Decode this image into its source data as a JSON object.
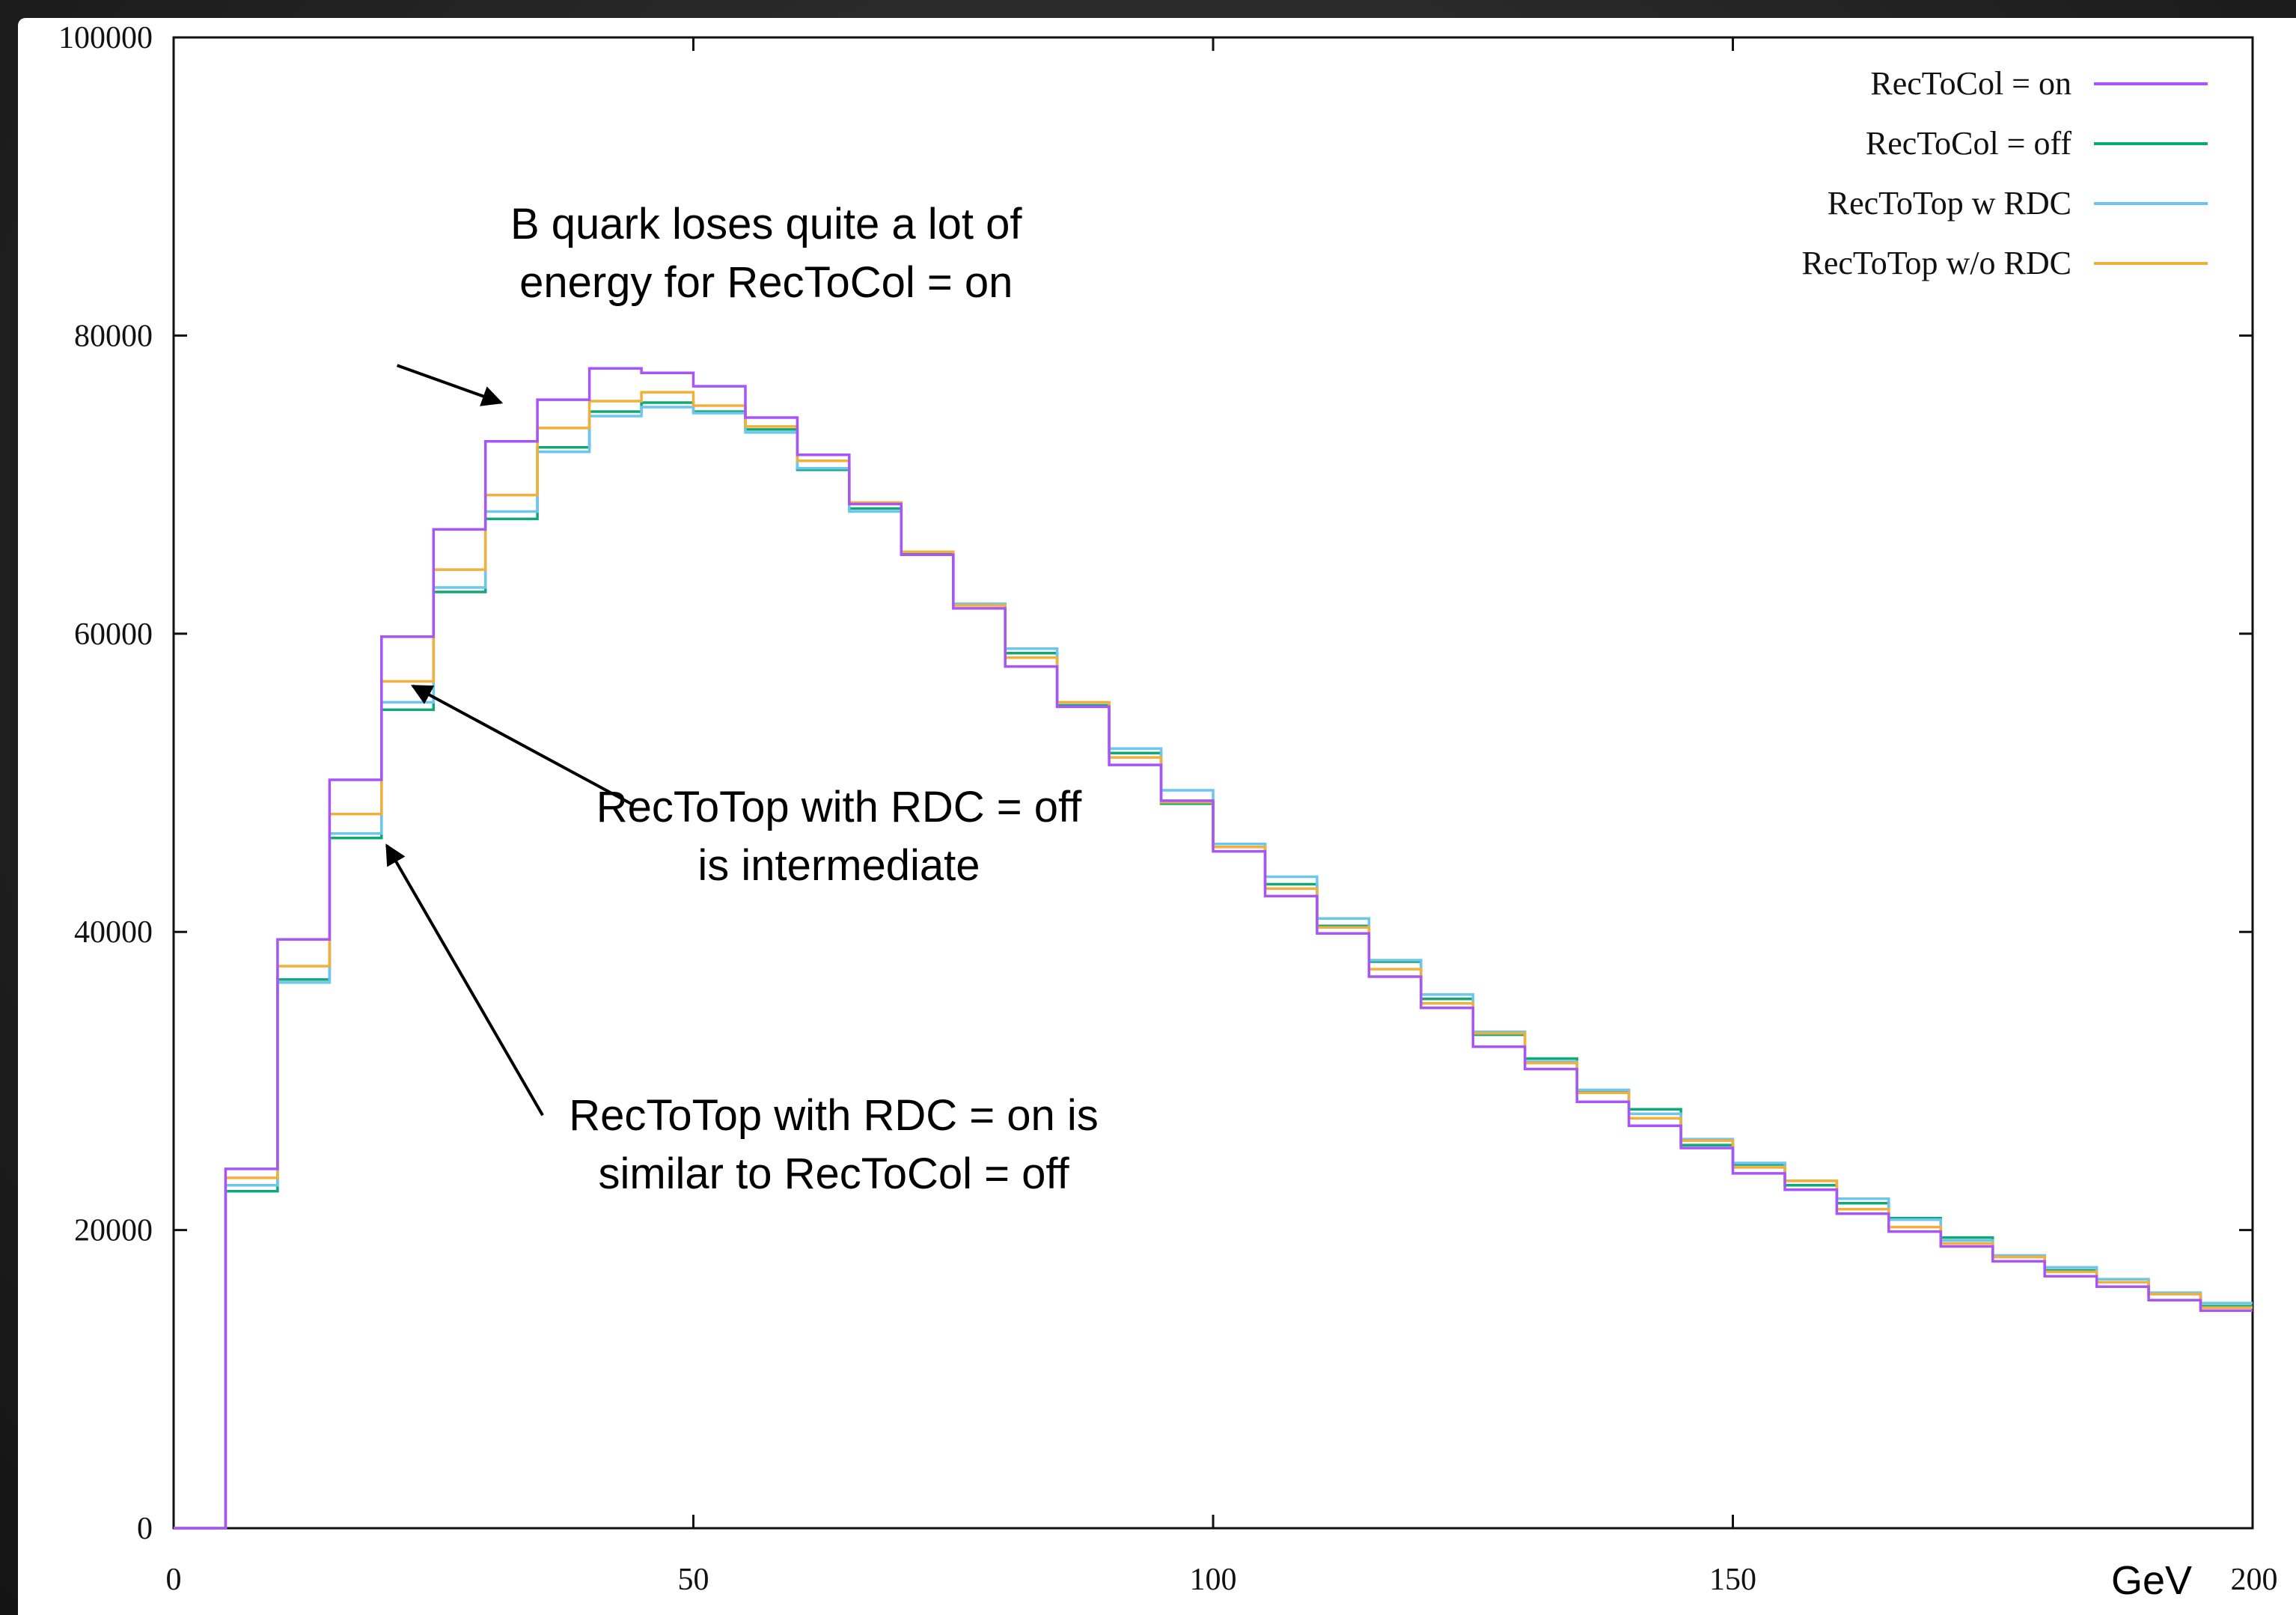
{
  "colors": {
    "frame": "#222222",
    "background": "#ffffff"
  },
  "chart_data": {
    "type": "line",
    "step": true,
    "title": "",
    "xlabel": "GeV",
    "ylabel": "",
    "xlim": [
      0,
      200
    ],
    "ylim": [
      0,
      100000
    ],
    "grid": false,
    "legend_position": "top-right",
    "x_ticks": [
      "0",
      "50",
      "100",
      "150",
      "200"
    ],
    "y_ticks": [
      "0",
      "20000",
      "40000",
      "60000",
      "80000",
      "100000"
    ],
    "bin_edges": [
      0,
      5,
      10,
      15,
      20,
      25,
      30,
      35,
      40,
      45,
      50,
      55,
      60,
      65,
      70,
      75,
      80,
      85,
      90,
      95,
      100,
      105,
      110,
      115,
      120,
      125,
      130,
      135,
      140,
      145,
      150,
      155,
      160,
      165,
      170,
      175,
      180,
      185,
      190,
      195,
      200
    ],
    "series": [
      {
        "name": "RecToCol = on",
        "color": "#a855f7",
        "values": [
          0,
          24100,
          39500,
          50200,
          59800,
          67000,
          72900,
          75700,
          77800,
          77500,
          76600,
          74500,
          72000,
          68700,
          65300,
          61700,
          57800,
          55100,
          51200,
          48800,
          45400,
          42400,
          39900,
          37000,
          34900,
          32300,
          30800,
          28600,
          27000,
          25500,
          23800,
          22700,
          21100,
          19900,
          18900,
          17900,
          16900,
          16200,
          15300,
          14600
        ]
      },
      {
        "name": "RecToCol = off",
        "color": "#10a878",
        "values": [
          0,
          22600,
          36800,
          46300,
          54900,
          62800,
          67700,
          72500,
          74900,
          75500,
          74900,
          73700,
          71000,
          68400,
          65400,
          62000,
          58700,
          55200,
          52000,
          48600,
          45900,
          43200,
          40400,
          38000,
          35500,
          33100,
          31500,
          29300,
          28100,
          25700,
          24400,
          23000,
          21800,
          20800,
          19500,
          18200,
          17300,
          16500,
          15700,
          14900
        ]
      },
      {
        "name": "RecToTop w RDC",
        "color": "#6cc6ee",
        "values": [
          0,
          23000,
          36600,
          46600,
          55400,
          63100,
          68200,
          72200,
          74600,
          75200,
          74800,
          73500,
          71100,
          68200,
          65300,
          62000,
          59000,
          55100,
          52300,
          49500,
          45900,
          43700,
          40900,
          38100,
          35800,
          33300,
          31300,
          29400,
          27800,
          26100,
          24500,
          23300,
          22100,
          20700,
          19300,
          18300,
          17500,
          16700,
          15800,
          15100
        ]
      },
      {
        "name": "RecToTop w/o RDC",
        "color": "#f2b03a",
        "values": [
          0,
          23500,
          37700,
          47900,
          56800,
          64300,
          69300,
          73800,
          75600,
          76200,
          75300,
          73900,
          71600,
          68800,
          65500,
          61900,
          58400,
          55400,
          51700,
          48700,
          45700,
          42900,
          40300,
          37500,
          35200,
          33200,
          31200,
          29200,
          27500,
          26000,
          24200,
          23300,
          21400,
          20200,
          19100,
          18200,
          17200,
          16500,
          15700,
          14800
        ]
      }
    ],
    "annotations": [
      {
        "lines": [
          "B quark loses quite a lot of",
          "energy for RecToCol = on"
        ],
        "text_anchor_data": [
          57,
          86500
        ],
        "arrow_from_data": [
          21.5,
          78000
        ],
        "arrow_to_data": [
          31.5,
          75500
        ]
      },
      {
        "lines": [
          "RecToTop with RDC = off",
          "is intermediate"
        ],
        "text_anchor_data": [
          64,
          47400
        ],
        "arrow_from_data": [
          44,
          48600
        ],
        "arrow_to_data": [
          23,
          56500
        ]
      },
      {
        "lines": [
          "RecToTop with RDC = on is",
          "similar to RecToCol = off"
        ],
        "text_anchor_data": [
          63.5,
          26700
        ],
        "arrow_from_data": [
          35.5,
          27700
        ],
        "arrow_to_data": [
          20.5,
          45800
        ]
      }
    ]
  }
}
